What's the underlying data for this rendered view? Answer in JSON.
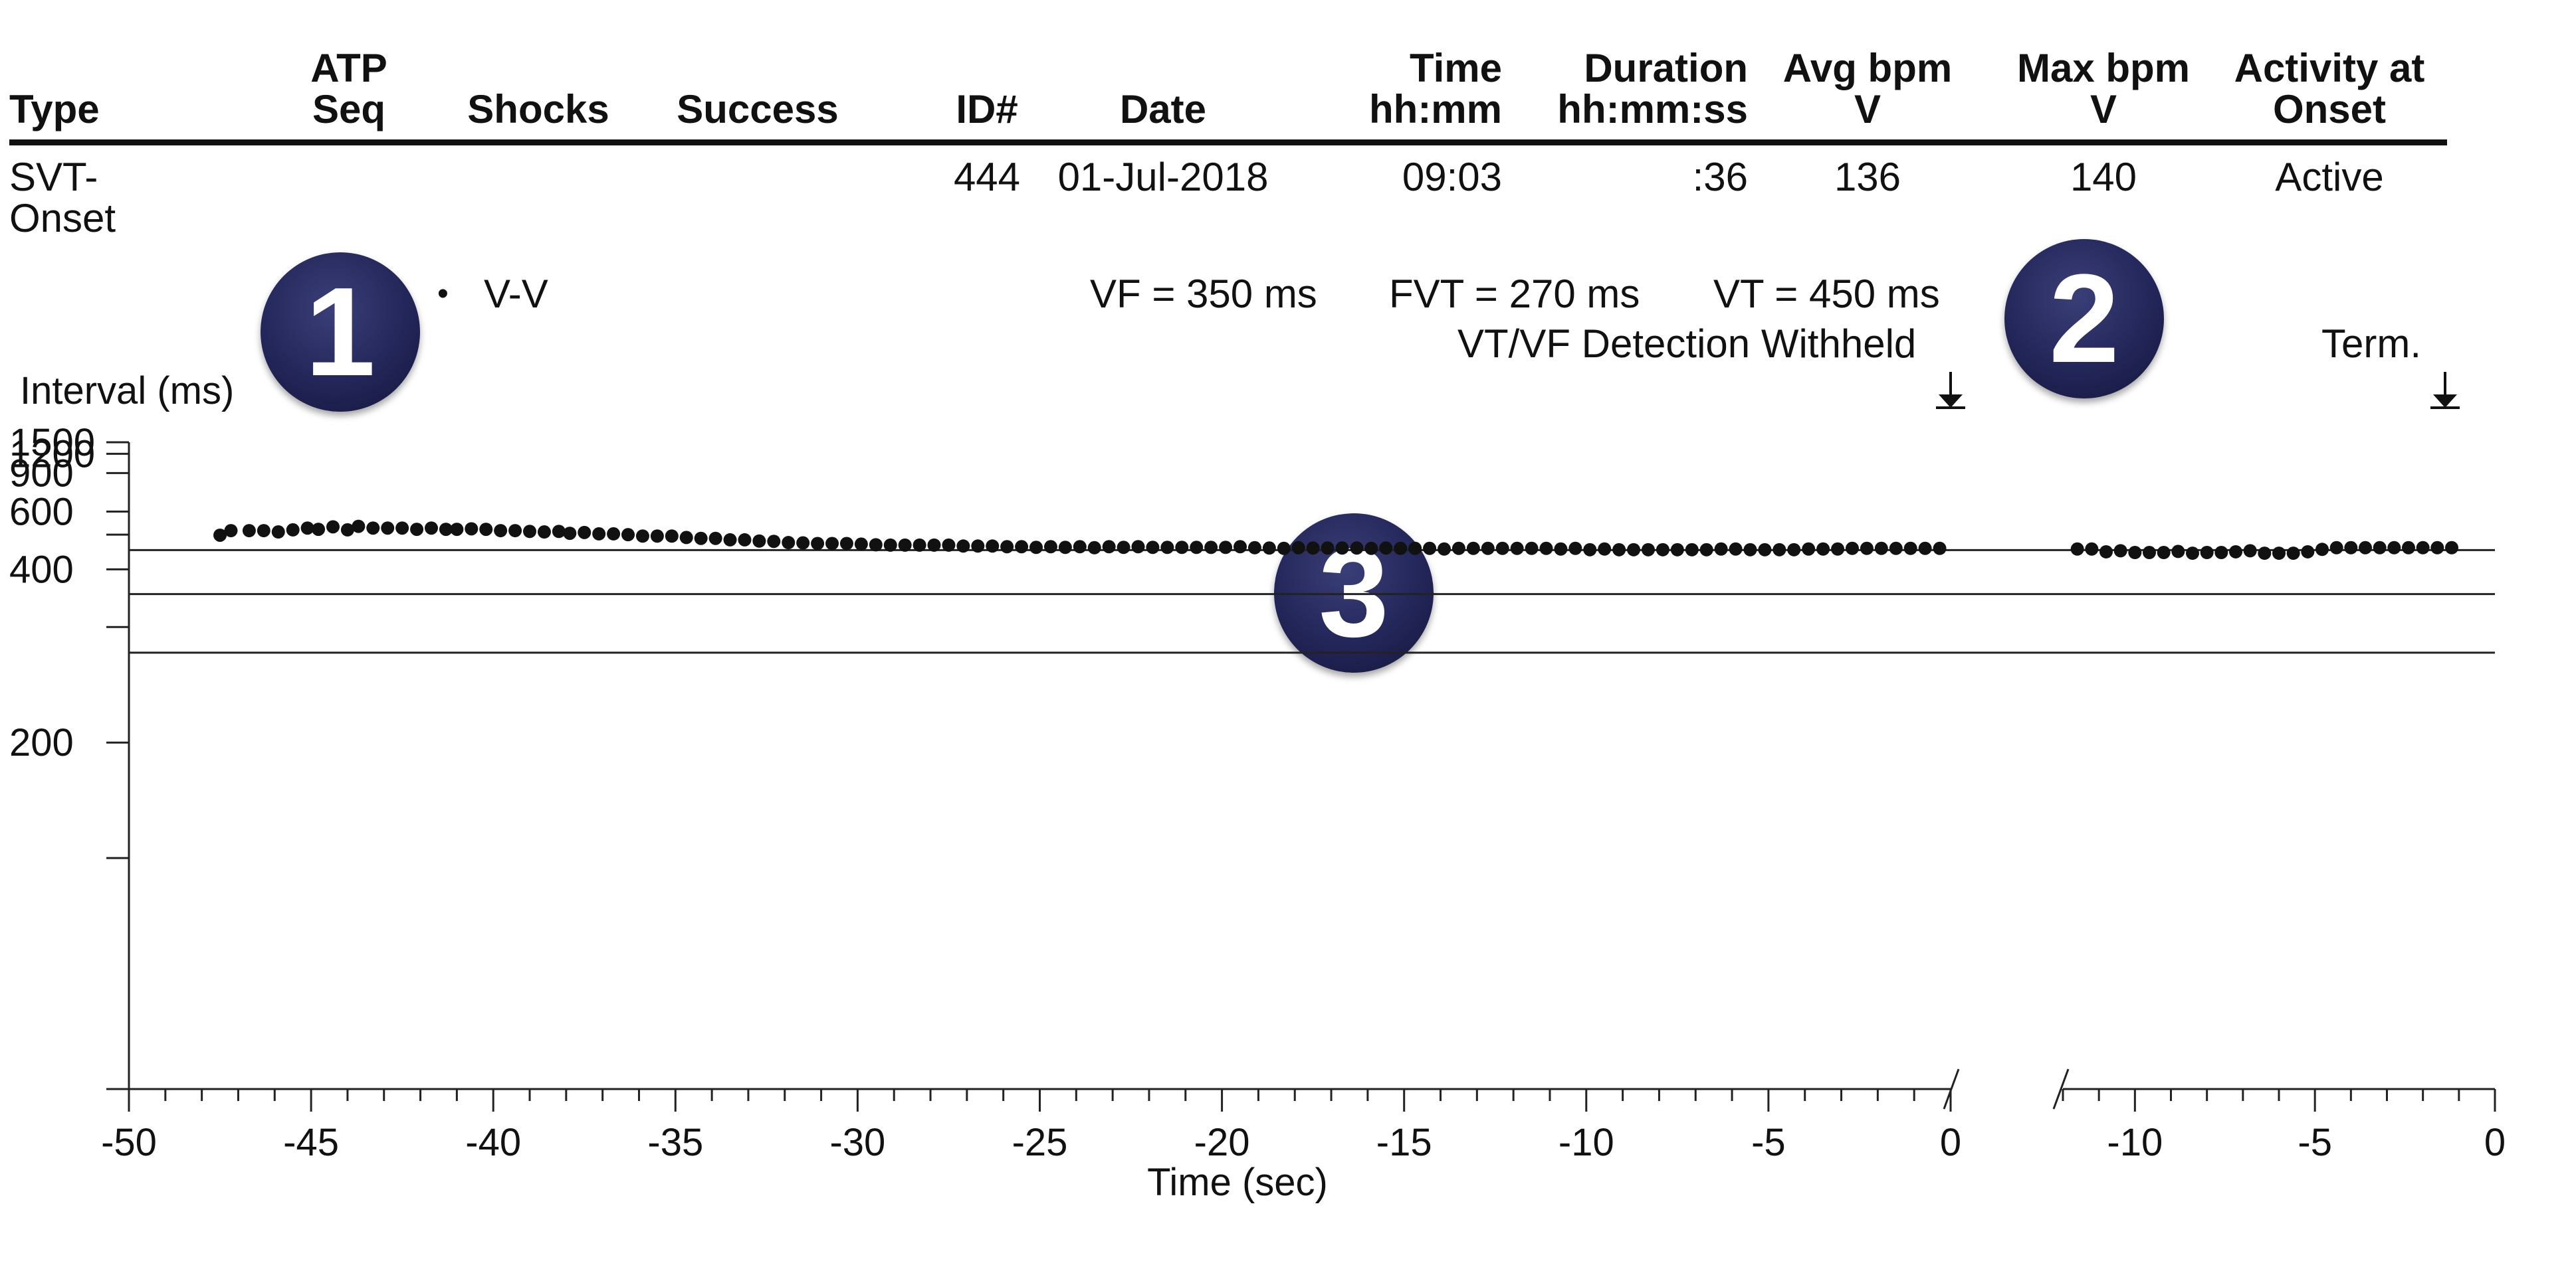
{
  "table": {
    "headers": [
      {
        "key": "type",
        "line1": "",
        "line2": "Type"
      },
      {
        "key": "atp",
        "line1": "ATP",
        "line2": "Seq"
      },
      {
        "key": "shocks",
        "line1": "",
        "line2": "Shocks"
      },
      {
        "key": "success",
        "line1": "",
        "line2": "Success"
      },
      {
        "key": "id",
        "line1": "",
        "line2": "ID#"
      },
      {
        "key": "date",
        "line1": "",
        "line2": "Date"
      },
      {
        "key": "time",
        "line1": "Time",
        "line2": "hh:mm"
      },
      {
        "key": "duration",
        "line1": "Duration",
        "line2": "hh:mm:ss"
      },
      {
        "key": "avg",
        "line1": "Avg bpm",
        "line2": "V"
      },
      {
        "key": "max",
        "line1": "Max bpm",
        "line2": "V"
      },
      {
        "key": "activity",
        "line1": "Activity at",
        "line2": "Onset"
      }
    ],
    "row": {
      "type": "SVT-Onset",
      "atp": "",
      "shocks": "",
      "success": "",
      "id": "444",
      "date": "01-Jul-2018",
      "time": "09:03",
      "duration": ":36",
      "avg": "136",
      "max": "140",
      "activity": "Active"
    }
  },
  "badges": [
    "1",
    "2",
    "3"
  ],
  "legend": {
    "marker": "•",
    "label": "V-V"
  },
  "zones": {
    "vf": "VF = 350 ms",
    "fvt": "FVT = 270 ms",
    "vt": "VT = 450 ms",
    "withheld": "VT/VF Detection Withheld",
    "term": "Term."
  },
  "chart_data": {
    "type": "scatter",
    "ylabel": "Interval (ms)",
    "xlabel": "Time (sec)",
    "y_ticks": [
      1500,
      1200,
      900,
      600,
      400,
      200
    ],
    "y_scale": "reciprocal",
    "ylim": [
      100,
      1500
    ],
    "threshold_lines_ms": [
      450,
      350,
      270
    ],
    "panels": [
      {
        "xlim": [
          -50,
          0
        ],
        "x_ticks": [
          -50,
          -45,
          -40,
          -35,
          -30,
          -25,
          -20,
          -15,
          -10,
          -5,
          0
        ],
        "series": [
          {
            "name": "V-V",
            "x": [
              -47.5,
              -47.2,
              -46.7,
              -46.3,
              -45.9,
              -45.5,
              -45.1,
              -44.8,
              -44.4,
              -44.0,
              -43.7,
              -43.3,
              -42.9,
              -42.5,
              -42.1,
              -41.7,
              -41.3,
              -41.0,
              -40.6,
              -40.2,
              -39.8,
              -39.4,
              -39.0,
              -38.6,
              -38.2,
              -37.9,
              -37.5,
              -37.1,
              -36.7,
              -36.3,
              -35.9,
              -35.5,
              -35.1,
              -34.7,
              -34.3,
              -33.9,
              -33.5,
              -33.1,
              -32.7,
              -32.3,
              -31.9,
              -31.5,
              -31.1,
              -30.7,
              -30.3,
              -29.9,
              -29.5,
              -29.1,
              -28.7,
              -28.3,
              -27.9,
              -27.5,
              -27.1,
              -26.7,
              -26.3,
              -25.9,
              -25.5,
              -25.1,
              -24.7,
              -24.3,
              -23.9,
              -23.5,
              -23.1,
              -22.7,
              -22.3,
              -21.9,
              -21.5,
              -21.1,
              -20.7,
              -20.3,
              -19.9,
              -19.5,
              -19.1,
              -18.7,
              -18.3,
              -17.9,
              -17.5,
              -17.1,
              -16.7,
              -16.3,
              -15.9,
              -15.5,
              -15.1,
              -14.7,
              -14.3,
              -13.9,
              -13.5,
              -13.1,
              -12.7,
              -12.3,
              -11.9,
              -11.5,
              -11.1,
              -10.7,
              -10.3,
              -9.9,
              -9.5,
              -9.1,
              -8.7,
              -8.3,
              -7.9,
              -7.5,
              -7.1,
              -6.7,
              -6.3,
              -5.9,
              -5.5,
              -5.1,
              -4.7,
              -4.3,
              -3.9,
              -3.5,
              -3.1,
              -2.7,
              -2.3,
              -1.9,
              -1.5,
              -1.1,
              -0.7,
              -0.3
            ],
            "y": [
              498,
              515,
              515,
              515,
              510,
              518,
              525,
              520,
              530,
              518,
              532,
              525,
              525,
              525,
              520,
              525,
              520,
              520,
              522,
              520,
              515,
              515,
              512,
              510,
              512,
              505,
              508,
              503,
              503,
              500,
              495,
              495,
              495,
              490,
              487,
              487,
              482,
              482,
              478,
              477,
              473,
              472,
              470,
              470,
              470,
              468,
              466,
              465,
              465,
              465,
              465,
              465,
              462,
              462,
              462,
              460,
              460,
              458,
              460,
              458,
              460,
              457,
              460,
              458,
              460,
              458,
              458,
              458,
              458,
              458,
              458,
              460,
              457,
              456,
              455,
              457,
              456,
              456,
              456,
              456,
              455,
              456,
              455,
              455,
              455,
              453,
              455,
              455,
              455,
              455,
              455,
              455,
              455,
              453,
              455,
              451,
              453,
              451,
              451,
              451,
              451,
              451,
              451,
              451,
              453,
              453,
              451,
              451,
              451,
              451,
              453,
              453,
              453,
              455,
              455,
              455,
              455,
              455,
              455,
              455
            ]
          }
        ]
      },
      {
        "xlim": [
          -12,
          0
        ],
        "x_ticks": [
          -10,
          -5,
          0
        ],
        "series": [
          {
            "name": "V-V",
            "x": [
              -11.6,
              -11.2,
              -10.8,
              -10.4,
              -10.0,
              -9.6,
              -9.2,
              -8.8,
              -8.4,
              -8.0,
              -7.6,
              -7.2,
              -6.8,
              -6.4,
              -6.0,
              -5.6,
              -5.2,
              -4.8,
              -4.4,
              -4.0,
              -3.6,
              -3.2,
              -2.8,
              -2.4,
              -2.0,
              -1.6,
              -1.2
            ],
            "y": [
              453,
              453,
              445,
              448,
              443,
              443,
              443,
              446,
              441,
              443,
              443,
              445,
              448,
              441,
              441,
              441,
              445,
              452,
              457,
              457,
              457,
              457,
              457,
              457,
              457,
              457,
              457
            ]
          }
        ]
      }
    ]
  }
}
